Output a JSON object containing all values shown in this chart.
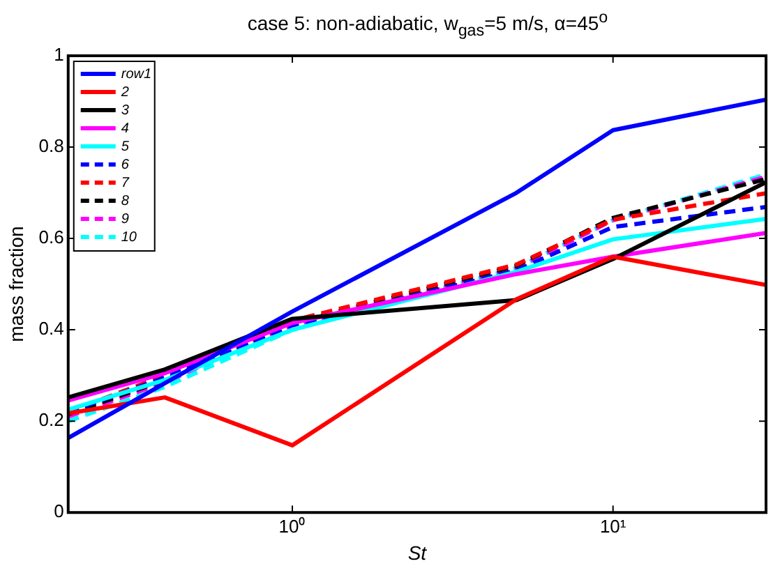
{
  "chart_data": {
    "type": "line",
    "title": "case 5: non-adiabatic, w$_{gas}$=5 m/s, α=45$^{o}$",
    "xlabel": "St",
    "ylabel": "mass fraction",
    "log": "x",
    "x": [
      0.2,
      0.4,
      1,
      5,
      10,
      30
    ],
    "xlim": [
      0.2,
      30
    ],
    "xticks": [
      {
        "value": 1,
        "label": "10⁰"
      },
      {
        "value": 10,
        "label": "10¹"
      }
    ],
    "ylim": [
      0,
      1
    ],
    "yticks": [
      0,
      0.2,
      0.4,
      0.6,
      0.8,
      1
    ],
    "grid": false,
    "legend": "top left",
    "marker": "none",
    "series": [
      {
        "name": "row1",
        "color": "#0000ff",
        "line_style": "solid",
        "values": [
          0.163,
          0.283,
          0.44,
          0.7,
          0.837,
          0.904
        ]
      },
      {
        "name": "2",
        "color": "#ff0000",
        "line_style": "solid",
        "values": [
          0.217,
          0.252,
          0.147,
          0.467,
          0.56,
          0.498
        ]
      },
      {
        "name": "3",
        "color": "#000000",
        "line_style": "solid",
        "values": [
          0.252,
          0.313,
          0.424,
          0.465,
          0.555,
          0.723
        ]
      },
      {
        "name": "4",
        "color": "#ff00ff",
        "line_style": "solid",
        "values": [
          0.245,
          0.305,
          0.415,
          0.522,
          0.56,
          0.612
        ]
      },
      {
        "name": "5",
        "color": "#00ffff",
        "line_style": "solid",
        "values": [
          0.225,
          0.29,
          0.4,
          0.527,
          0.598,
          0.643
        ]
      },
      {
        "name": "6",
        "color": "#0000ff",
        "line_style": "dashed",
        "values": [
          0.22,
          0.295,
          0.41,
          0.53,
          0.625,
          0.669
        ]
      },
      {
        "name": "7",
        "color": "#ff0000",
        "line_style": "dashed",
        "values": [
          0.22,
          0.3,
          0.42,
          0.543,
          0.641,
          0.699
        ]
      },
      {
        "name": "8",
        "color": "#000000",
        "line_style": "dashed",
        "values": [
          0.215,
          0.29,
          0.415,
          0.54,
          0.645,
          0.73
        ]
      },
      {
        "name": "9",
        "color": "#ff00ff",
        "line_style": "dashed",
        "values": [
          0.21,
          0.285,
          0.41,
          0.535,
          0.64,
          0.735
        ]
      },
      {
        "name": "10",
        "color": "#00ffff",
        "line_style": "dashed",
        "values": [
          0.2,
          0.275,
          0.4,
          0.535,
          0.64,
          0.74
        ]
      }
    ]
  }
}
